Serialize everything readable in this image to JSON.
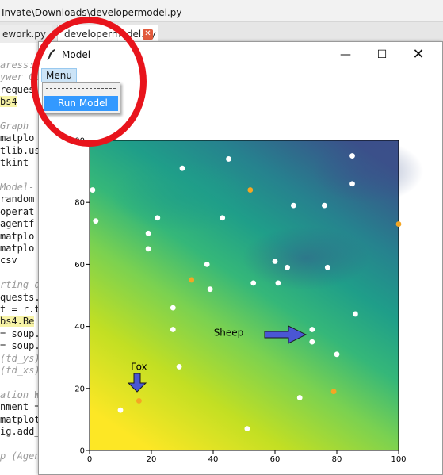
{
  "editor": {
    "title_path": "Invate\\Downloads\\developermodel.py",
    "tabs": [
      {
        "label": "ework.py"
      },
      {
        "label": "developermodel.py"
      }
    ],
    "close_glyph": "✕",
    "code_lines": [
      {
        "text": "aress:",
        "style": "comment"
      },
      {
        "text": "ywer Coo",
        "style": "comment"
      },
      {
        "text": "reques",
        "style": "normal"
      },
      {
        "text": "bs4",
        "style": "hl"
      },
      {
        "text": "",
        "style": "normal"
      },
      {
        "text": "Graph",
        "style": "comment"
      },
      {
        "text": "matplo",
        "style": "normal"
      },
      {
        "text": "tlib.us",
        "style": "normal"
      },
      {
        "text": "tkint",
        "style": "normal"
      },
      {
        "text": "",
        "style": "normal"
      },
      {
        "text": "Model-",
        "style": "comment"
      },
      {
        "text": "random",
        "style": "normal"
      },
      {
        "text": "operat",
        "style": "normal"
      },
      {
        "text": "agentf",
        "style": "normal"
      },
      {
        "text": "matplo",
        "style": "normal"
      },
      {
        "text": "matplo",
        "style": "normal"
      },
      {
        "text": "csv",
        "style": "normal"
      },
      {
        "text": "",
        "style": "normal"
      },
      {
        "text": "rting d",
        "style": "comment"
      },
      {
        "text": "quests.",
        "style": "normal"
      },
      {
        "text": "t = r.t",
        "style": "normal"
      },
      {
        "text": "bs4.Be",
        "style": "hl"
      },
      {
        "text": "= soup.",
        "style": "normal"
      },
      {
        "text": "= soup.",
        "style": "normal"
      },
      {
        "text": "(td_ys)",
        "style": "comment"
      },
      {
        "text": "(td_xs)",
        "style": "comment"
      },
      {
        "text": "",
        "style": "normal"
      },
      {
        "text": "ation W",
        "style": "comment"
      },
      {
        "text": "nment =",
        "style": "normal"
      },
      {
        "text": "matplot",
        "style": "normal"
      },
      {
        "text": "ig.add_",
        "style": "normal"
      },
      {
        "text": "",
        "style": "normal"
      },
      {
        "text": "p (Agen",
        "style": "comment"
      }
    ],
    "right_edge_glyph": "n"
  },
  "window": {
    "title": "Model",
    "minimize_glyph": "—",
    "maximize_glyph": "☐",
    "close_glyph": "✕"
  },
  "menu": {
    "label": "Menu",
    "tearoff": "- - - - - - - - -",
    "items": [
      {
        "label": "Run Model"
      }
    ]
  },
  "colors": {
    "highlight_circle": "#e8141c",
    "arrow_fill": "#4a56d4",
    "sheep_dot": "#ffffff",
    "wolf_dot": "#f5a623",
    "fox_dot": "#f5a623",
    "env_low": "#fde725",
    "env_high": "#3b4f8a"
  },
  "chart_data": {
    "type": "scatter",
    "xlim": [
      0,
      100
    ],
    "ylim": [
      0,
      100
    ],
    "xticks": [
      0,
      20,
      40,
      60,
      80,
      100
    ],
    "yticks": [
      0,
      20,
      40,
      60,
      80,
      100
    ],
    "background": "environment heatmap",
    "series": [
      {
        "color": "#ffffff",
        "x": [
          1,
          2,
          30,
          45,
          19,
          19,
          22,
          43,
          38,
          39,
          27,
          27,
          29,
          53,
          60,
          61,
          64,
          66,
          76,
          77,
          85,
          85,
          86,
          72,
          72,
          80,
          68,
          10,
          51
        ],
        "y": [
          84,
          74,
          91,
          94,
          70,
          65,
          75,
          75,
          60,
          52,
          46,
          39,
          27,
          54,
          61,
          54,
          59,
          79,
          79,
          59,
          95,
          86,
          44,
          39,
          35,
          31,
          17,
          13,
          7
        ]
      },
      {
        "color": "#f5a623",
        "x": [
          52,
          33,
          100,
          79,
          16
        ],
        "y": [
          84,
          55,
          73,
          19,
          16
        ]
      }
    ],
    "annotations": [
      {
        "text": "Sheep",
        "x": 45,
        "y": 37
      },
      {
        "text": "Fox",
        "x": 16,
        "y": 26
      }
    ]
  }
}
